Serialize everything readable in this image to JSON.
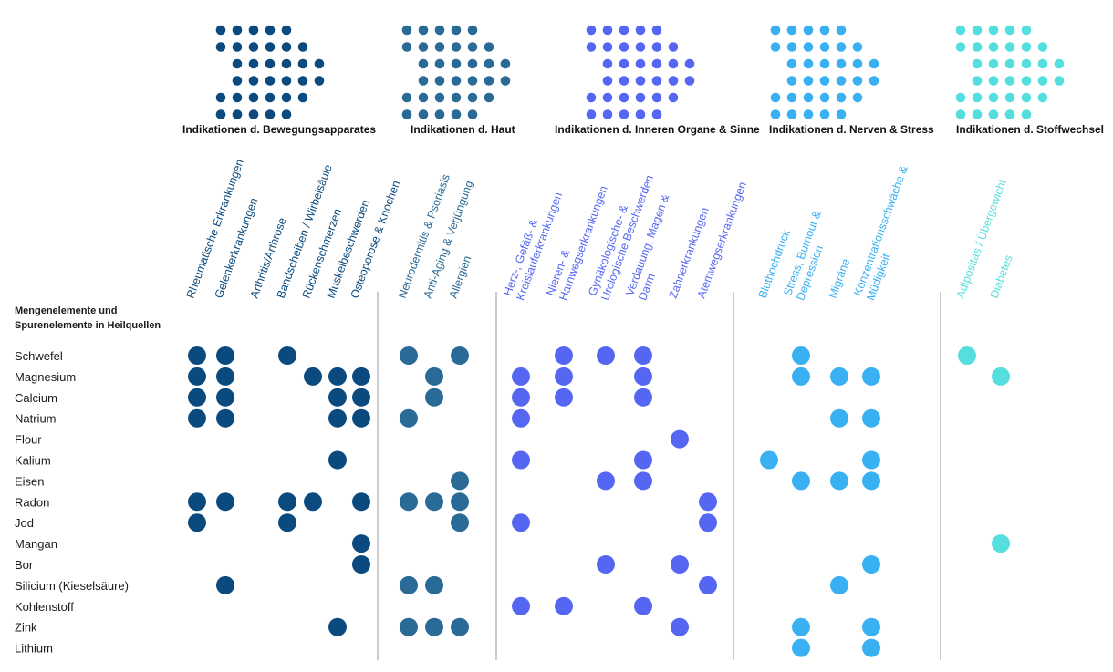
{
  "chart_data": {
    "type": "table",
    "matrix_title": [
      "Mengenelemente und",
      "Spurenelemente in Heilquellen"
    ],
    "groups": [
      {
        "name": "Indikationen d. Bewegungsapparates",
        "color": "#0a4a7e",
        "columns": [
          [
            "Rheumatische Erkrankungen"
          ],
          [
            "Gelenkerkrankungen"
          ],
          [
            "Arthritis/Arthrose"
          ],
          [
            "Bandscheiben / Wirbelsäule"
          ],
          [
            "Rückenschmerzen"
          ],
          [
            "Muskelbeschwerden"
          ],
          [
            "Osteoporose & Knochen"
          ]
        ]
      },
      {
        "name": "Indikationen d. Haut",
        "color": "#2a6a96",
        "columns": [
          [
            "Neurodermitis & Psoriasis"
          ],
          [
            "Anti-Aging & Verjüngung"
          ],
          [
            "Allergien"
          ]
        ]
      },
      {
        "name": "Indikationen d. Inneren Organe & Sinne",
        "color": "#5567f2",
        "columns": [
          [
            "Herz-, Gefäß- &",
            "Kreislauferkrankungen"
          ],
          [
            "Nieren- &",
            "Harnwegserkrankungen"
          ],
          [
            "Gynäkologische- &",
            "Urologische Beschwerden"
          ],
          [
            "Verdauung, Magen &",
            "Darm"
          ],
          [
            "Zahnerkrankungen"
          ],
          [
            "Atemwegserkrankungen"
          ]
        ]
      },
      {
        "name": "Indikationen d. Nerven & Stress",
        "color": "#38b0f2",
        "columns": [
          [
            "Bluthochdruck"
          ],
          [
            "Stress, Burnout &",
            "Depression"
          ],
          [
            "Migräne"
          ],
          [
            "Konzentrationsschwäche &",
            "Müdigkeit"
          ]
        ]
      },
      {
        "name": "Indikationen d. Stoffwechsel",
        "color": "#55dede",
        "columns": [
          [
            "Adipositas / Übergewicht"
          ],
          [
            "Diabetes"
          ]
        ]
      }
    ],
    "rows": [
      {
        "element": "Schwefel",
        "dots": [
          [
            0,
            0
          ],
          [
            0,
            1
          ],
          [
            0,
            3
          ],
          [
            1,
            0
          ],
          [
            1,
            2
          ],
          [
            2,
            1
          ],
          [
            2,
            2
          ],
          [
            2,
            3
          ],
          [
            3,
            1
          ],
          [
            4,
            0
          ]
        ]
      },
      {
        "element": "Magnesium",
        "dots": [
          [
            0,
            0
          ],
          [
            0,
            1
          ],
          [
            0,
            4
          ],
          [
            0,
            5
          ],
          [
            0,
            6
          ],
          [
            1,
            1
          ],
          [
            2,
            0
          ],
          [
            2,
            1
          ],
          [
            2,
            3
          ],
          [
            3,
            1
          ],
          [
            3,
            2
          ],
          [
            3,
            3
          ],
          [
            4,
            1
          ]
        ]
      },
      {
        "element": "Calcium",
        "dots": [
          [
            0,
            0
          ],
          [
            0,
            1
          ],
          [
            0,
            5
          ],
          [
            0,
            6
          ],
          [
            1,
            1
          ],
          [
            2,
            0
          ],
          [
            2,
            1
          ],
          [
            2,
            3
          ]
        ]
      },
      {
        "element": "Natrium",
        "dots": [
          [
            0,
            0
          ],
          [
            0,
            1
          ],
          [
            0,
            5
          ],
          [
            0,
            6
          ],
          [
            1,
            0
          ],
          [
            2,
            0
          ],
          [
            3,
            2
          ],
          [
            3,
            3
          ]
        ]
      },
      {
        "element": "Flour",
        "dots": [
          [
            2,
            4
          ]
        ]
      },
      {
        "element": "Kalium",
        "dots": [
          [
            0,
            5
          ],
          [
            2,
            0
          ],
          [
            2,
            3
          ],
          [
            3,
            0
          ],
          [
            3,
            3
          ]
        ]
      },
      {
        "element": "Eisen",
        "dots": [
          [
            1,
            2
          ],
          [
            2,
            2
          ],
          [
            2,
            3
          ],
          [
            3,
            1
          ],
          [
            3,
            2
          ],
          [
            3,
            3
          ]
        ]
      },
      {
        "element": "Radon",
        "dots": [
          [
            0,
            0
          ],
          [
            0,
            1
          ],
          [
            0,
            3
          ],
          [
            0,
            4
          ],
          [
            0,
            6
          ],
          [
            1,
            0
          ],
          [
            1,
            1
          ],
          [
            1,
            2
          ],
          [
            2,
            5
          ]
        ]
      },
      {
        "element": "Jod",
        "dots": [
          [
            0,
            0
          ],
          [
            0,
            3
          ],
          [
            1,
            2
          ],
          [
            2,
            0
          ],
          [
            2,
            5
          ]
        ]
      },
      {
        "element": "Mangan",
        "dots": [
          [
            0,
            6
          ],
          [
            4,
            1
          ]
        ]
      },
      {
        "element": "Bor",
        "dots": [
          [
            0,
            6
          ],
          [
            2,
            2
          ],
          [
            2,
            4
          ],
          [
            3,
            3
          ]
        ]
      },
      {
        "element": "Silicium (Kieselsäure)",
        "dots": [
          [
            0,
            1
          ],
          [
            1,
            0
          ],
          [
            1,
            1
          ],
          [
            2,
            5
          ],
          [
            3,
            2
          ]
        ]
      },
      {
        "element": "Kohlenstoff",
        "dots": [
          [
            2,
            0
          ],
          [
            2,
            1
          ],
          [
            2,
            3
          ]
        ]
      },
      {
        "element": "Zink",
        "dots": [
          [
            0,
            5
          ],
          [
            1,
            0
          ],
          [
            1,
            1
          ],
          [
            1,
            2
          ],
          [
            2,
            4
          ],
          [
            3,
            1
          ],
          [
            3,
            3
          ]
        ]
      },
      {
        "element": "Lithium",
        "dots": [
          [
            3,
            1
          ],
          [
            3,
            3
          ]
        ]
      }
    ]
  }
}
